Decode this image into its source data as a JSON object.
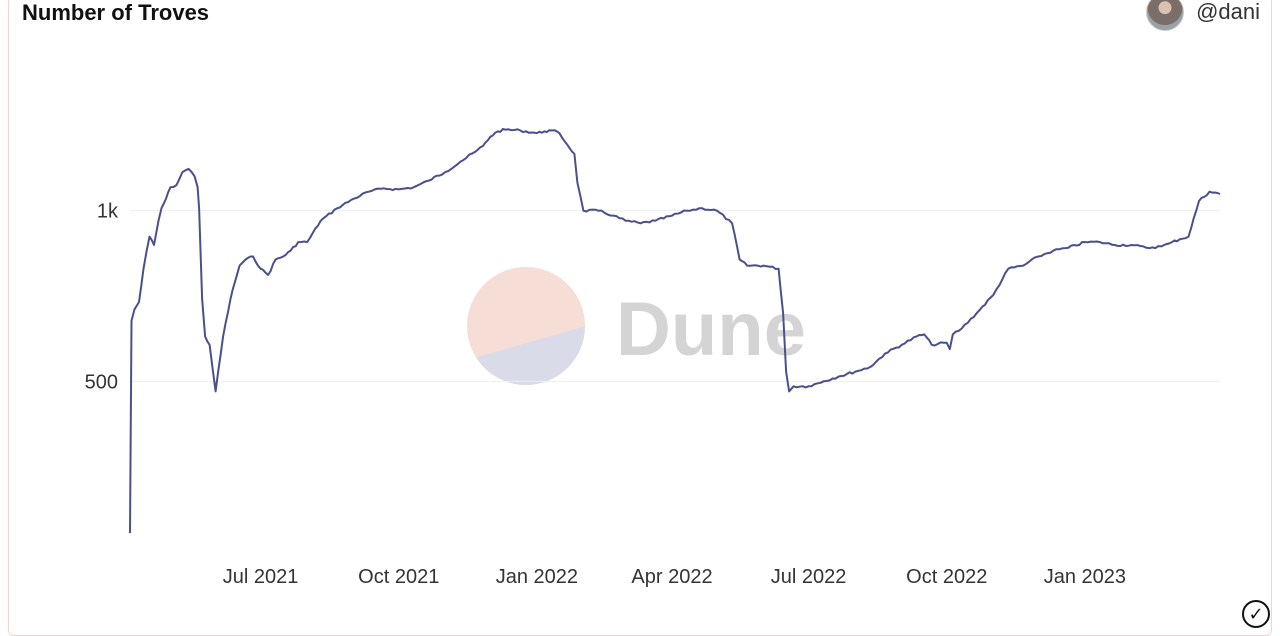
{
  "header": {
    "title": "Number of Troves",
    "author": "@dani"
  },
  "watermark": {
    "text": "Dune"
  },
  "colors": {
    "line": "#4b4f8c",
    "grid": "#eeeeee",
    "wm_top": "#f6ded6",
    "wm_bottom": "#d9dbe9",
    "wm_text": "#d4d4d4"
  },
  "chart_data": {
    "type": "line",
    "title": "Number of Troves",
    "xlabel": "",
    "ylabel": "",
    "yscale": "log",
    "grid": true,
    "y_ticks": [
      {
        "value": 500,
        "label": "500"
      },
      {
        "value": 1000,
        "label": "1k"
      }
    ],
    "x_ticks": [
      {
        "value": "2021-07-01",
        "label": "Jul 2021"
      },
      {
        "value": "2021-10-01",
        "label": "Oct 2021"
      },
      {
        "value": "2022-01-01",
        "label": "Jan 2022"
      },
      {
        "value": "2022-04-01",
        "label": "Apr 2022"
      },
      {
        "value": "2022-07-01",
        "label": "Jul 2022"
      },
      {
        "value": "2022-10-01",
        "label": "Oct 2022"
      },
      {
        "value": "2023-01-01",
        "label": "Jan 2023"
      }
    ],
    "xlim": [
      "2021-04-05",
      "2023-04-01"
    ],
    "ylim": [
      250,
      2000
    ],
    "series": [
      {
        "x": [
          "2021-04-05",
          "2021-04-06",
          "2021-04-08",
          "2021-04-11",
          "2021-04-14",
          "2021-04-18",
          "2021-04-21",
          "2021-04-24",
          "2021-04-26",
          "2021-04-29",
          "2021-05-02",
          "2021-05-06",
          "2021-05-10",
          "2021-05-14",
          "2021-05-18",
          "2021-05-20",
          "2021-05-21",
          "2021-05-23",
          "2021-05-25",
          "2021-05-28",
          "2021-06-01",
          "2021-06-06",
          "2021-06-11",
          "2021-06-14",
          "2021-06-17",
          "2021-06-21",
          "2021-06-26",
          "2021-07-01",
          "2021-07-06",
          "2021-07-11",
          "2021-07-16",
          "2021-07-21",
          "2021-07-26",
          "2021-08-01",
          "2021-08-10",
          "2021-08-21",
          "2021-09-01",
          "2021-09-11",
          "2021-09-21",
          "2021-10-01",
          "2021-10-11",
          "2021-10-21",
          "2021-11-01",
          "2021-11-11",
          "2021-11-21",
          "2021-11-26",
          "2021-12-01",
          "2021-12-06",
          "2021-12-11",
          "2021-12-21",
          "2022-01-01",
          "2022-01-06",
          "2022-01-11",
          "2022-01-16",
          "2022-01-21",
          "2022-01-26",
          "2022-01-28",
          "2022-02-01",
          "2022-02-11",
          "2022-02-21",
          "2022-03-01",
          "2022-03-11",
          "2022-03-21",
          "2022-04-01",
          "2022-04-11",
          "2022-04-21",
          "2022-05-01",
          "2022-05-11",
          "2022-05-16",
          "2022-05-21",
          "2022-06-01",
          "2022-06-11",
          "2022-06-14",
          "2022-06-16",
          "2022-06-18",
          "2022-06-21",
          "2022-07-01",
          "2022-07-11",
          "2022-07-21",
          "2022-08-01",
          "2022-08-11",
          "2022-08-21",
          "2022-09-01",
          "2022-09-11",
          "2022-09-16",
          "2022-09-21",
          "2022-10-01",
          "2022-10-03",
          "2022-10-05",
          "2022-10-11",
          "2022-10-21",
          "2022-11-01",
          "2022-11-11",
          "2022-11-21",
          "2022-12-01",
          "2022-12-11",
          "2022-12-21",
          "2023-01-01",
          "2023-01-11",
          "2023-01-21",
          "2023-02-01",
          "2023-02-11",
          "2023-02-21",
          "2023-02-26",
          "2023-02-28",
          "2023-03-05",
          "2023-03-11",
          "2023-03-18",
          "2023-03-25",
          "2023-04-01"
        ],
        "values": [
          270,
          640,
          670,
          690,
          790,
          900,
          870,
          960,
          1010,
          1050,
          1100,
          1110,
          1170,
          1185,
          1150,
          1100,
          1010,
          700,
          600,
          580,
          480,
          600,
          700,
          750,
          800,
          820,
          830,
          790,
          770,
          820,
          830,
          850,
          880,
          880,
          960,
          1010,
          1050,
          1080,
          1095,
          1090,
          1100,
          1130,
          1170,
          1220,
          1270,
          1300,
          1350,
          1380,
          1390,
          1385,
          1370,
          1380,
          1385,
          1370,
          1310,
          1260,
          1120,
          1000,
          1000,
          980,
          960,
          950,
          960,
          980,
          1000,
          1010,
          1000,
          950,
          820,
          800,
          800,
          790,
          660,
          520,
          480,
          490,
          490,
          500,
          510,
          520,
          530,
          560,
          580,
          600,
          605,
          580,
          585,
          570,
          605,
          620,
          660,
          710,
          790,
          800,
          830,
          850,
          860,
          880,
          880,
          870,
          870,
          860,
          865,
          875,
          880,
          890,
          900,
          1040,
          1080,
          1070
        ]
      }
    ]
  },
  "footer": {
    "check_glyph": "✓"
  }
}
